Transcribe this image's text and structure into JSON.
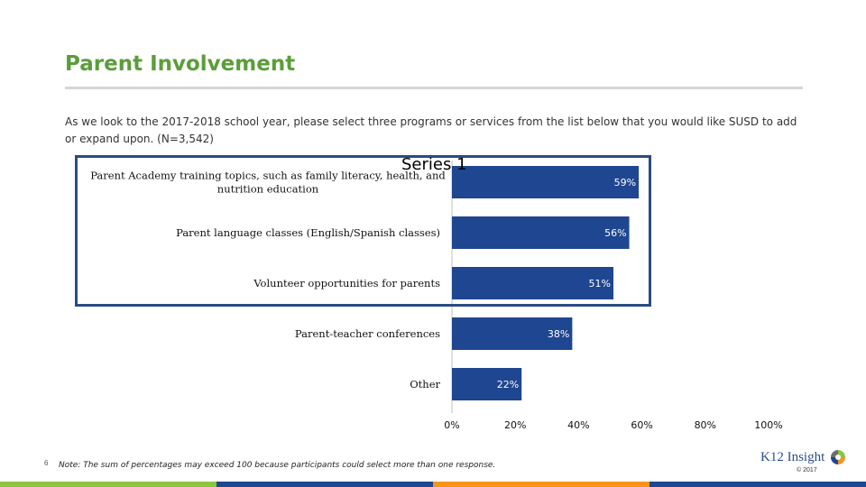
{
  "slide": {
    "title": "Parent Involvement",
    "question": "As we look to the 2017-2018 school year, please select three programs or services from the list below that you would like SUSD to add or expand upon. (N=3,542)",
    "page_number": "6",
    "footnote": "Note: The sum of percentages may exceed 100 because participants could select more than one response.",
    "logo_text": "K12 Insight",
    "copyright": "© 2017"
  },
  "colors": {
    "title": "#5a9e3a",
    "bar": "#1f4690",
    "highlight_box": "#2a4b86",
    "stripes": [
      "#8cc63f",
      "#1f4690",
      "#f7941d",
      "#1f4690"
    ]
  },
  "chart_data": {
    "type": "bar",
    "orientation": "horizontal",
    "series_title": "Series 1",
    "categories": [
      [
        "Parent Academy training topics, such as family literacy, health, and",
        "nutrition education"
      ],
      [
        "Parent language classes (English/Spanish classes)"
      ],
      [
        "Volunteer opportunities for parents"
      ],
      [
        "Parent-teacher conferences"
      ],
      [
        "Other"
      ]
    ],
    "values": [
      59,
      56,
      51,
      38,
      22
    ],
    "value_labels": [
      "59%",
      "56%",
      "51%",
      "38%",
      "22%"
    ],
    "xlim": [
      0,
      100
    ],
    "x_ticks": [
      "0%",
      "20%",
      "40%",
      "60%",
      "80%",
      "100%"
    ],
    "highlighted_count": 3,
    "grid": false
  }
}
